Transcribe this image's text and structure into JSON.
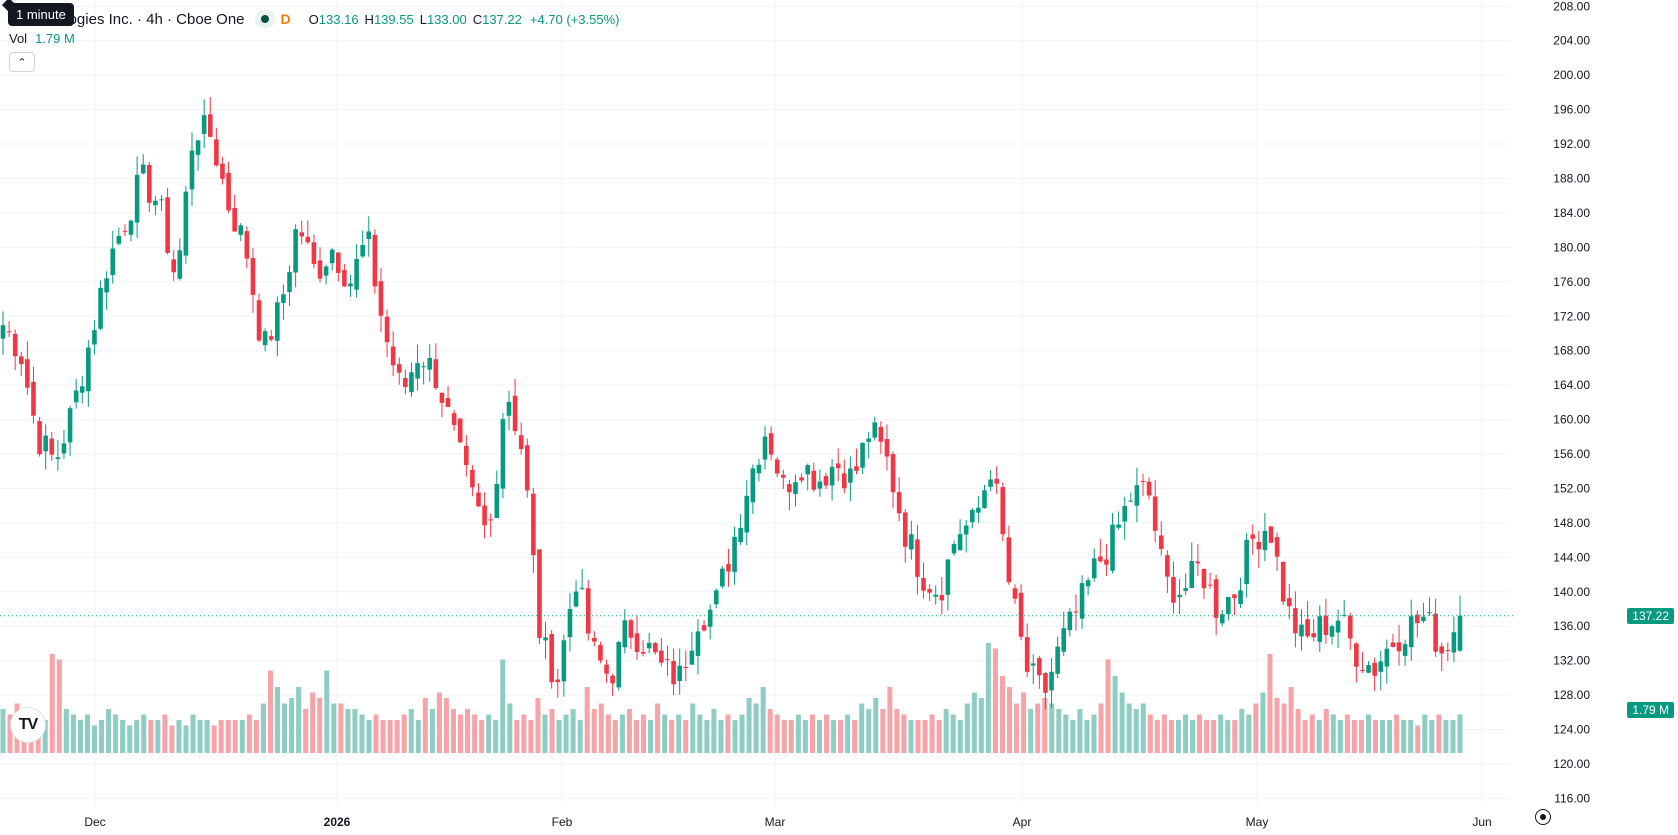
{
  "legend": {
    "title": "r Technologies Inc. · 4h · Cboe One",
    "flag": "D",
    "o_label": "O",
    "o_value": "133.16",
    "h_label": "H",
    "h_value": "139.55",
    "l_label": "L",
    "l_value": "133.00",
    "c_label": "C",
    "c_value": "137.22",
    "change": "+4.70 (+3.55%)",
    "tooltip": "1 minute"
  },
  "volume_legend": {
    "label": "Vol",
    "value": "1.79 M"
  },
  "colors": {
    "up": "#089981",
    "down": "#f23645",
    "vol_up": "#8dcdc3",
    "vol_down": "#f6a4a8",
    "grid": "#f0f3fa"
  },
  "icons": {
    "collapse": "chevron-up-icon",
    "logo": "tradingview-logo",
    "settings": "gear-icon"
  },
  "logo_text": "TV",
  "collapse_glyph": "⌃",
  "price_tag": "137.22",
  "volume_tag": "1.79 M",
  "chart_data": {
    "type": "candlestick",
    "y_ticks": [
      116.0,
      120.0,
      124.0,
      128.0,
      132.0,
      136.0,
      140.0,
      144.0,
      148.0,
      152.0,
      156.0,
      160.0,
      164.0,
      168.0,
      172.0,
      176.0,
      180.0,
      184.0,
      188.0,
      192.0,
      196.0,
      200.0,
      204.0,
      208.0
    ],
    "ylim": [
      115,
      208.5
    ],
    "x_ticks": [
      "Dec",
      "2026",
      "Feb",
      "Mar",
      "Apr",
      "May",
      "Jun"
    ],
    "last_price": 137.22,
    "last_volume": "1.79 M",
    "anchors": [
      [
        171,
        171,
        174,
        168,
        "Nov 20"
      ],
      [
        168,
        168,
        172,
        163,
        "Nov 24"
      ],
      [
        158,
        158,
        161,
        152,
        "Nov 25"
      ],
      [
        155,
        155,
        159,
        148,
        "Nov 26"
      ],
      [
        161,
        161,
        164,
        157,
        "Nov 28"
      ],
      [
        169,
        169,
        171,
        166,
        "Dec 2"
      ],
      [
        178,
        178,
        181,
        175,
        "Dec 5"
      ],
      [
        183,
        183,
        185,
        180,
        "Dec 9"
      ],
      [
        188,
        188,
        190,
        184,
        "Dec 11"
      ],
      [
        185,
        185,
        189,
        180,
        "Dec 15"
      ],
      [
        176,
        176,
        180,
        172,
        "Dec 17"
      ],
      [
        194,
        194,
        199,
        190,
        "Dec 19"
      ],
      [
        193,
        193,
        196,
        190,
        "Dec 22"
      ],
      [
        185,
        185,
        188,
        181,
        "Dec 24"
      ],
      [
        180,
        180,
        183,
        176,
        "Dec 26"
      ],
      [
        168,
        168,
        170,
        166,
        "Dec 30"
      ],
      [
        173,
        173,
        177,
        171,
        "Jan 2"
      ],
      [
        183,
        183,
        187,
        180,
        "Jan 5"
      ],
      [
        177,
        177,
        180,
        174,
        "Jan 8"
      ],
      [
        180,
        180,
        182,
        177,
        "Jan 12"
      ],
      [
        176,
        176,
        179,
        173,
        "Jan 14"
      ],
      [
        181,
        181,
        183,
        178,
        "Jan 15"
      ],
      [
        170,
        170,
        172,
        167,
        "Jan 19"
      ],
      [
        163,
        163,
        166,
        160,
        "Jan 21"
      ],
      [
        168,
        168,
        172,
        164,
        "Jan 23"
      ],
      [
        165,
        165,
        168,
        162,
        "Jan 26"
      ],
      [
        158,
        158,
        162,
        155,
        "Jan 28"
      ],
      [
        151,
        151,
        154,
        146,
        "Jan 29"
      ],
      [
        146,
        146,
        149,
        143,
        "Jan 30"
      ],
      [
        164,
        164,
        166,
        160,
        "Feb 2"
      ],
      [
        156,
        156,
        159,
        152,
        "Feb 3"
      ],
      [
        134,
        134,
        137,
        130,
        "Feb 4"
      ],
      [
        130,
        130,
        135,
        127,
        "Feb 5"
      ],
      [
        142,
        142,
        146,
        138,
        "Feb 9"
      ],
      [
        133,
        133,
        137,
        130,
        "Feb 11"
      ],
      [
        130,
        130,
        134,
        126,
        "Feb 13"
      ],
      [
        136,
        136,
        141,
        132,
        "Feb 17"
      ],
      [
        134,
        134,
        137,
        130,
        "Feb 19"
      ],
      [
        131,
        131,
        134,
        128,
        "Feb 23"
      ],
      [
        130,
        130,
        133,
        128,
        "Feb 24"
      ],
      [
        137,
        137,
        139,
        134,
        "Feb 26"
      ],
      [
        138,
        138,
        141,
        136,
        "Feb 27"
      ],
      [
        145,
        145,
        148,
        141,
        "Mar 3"
      ],
      [
        153,
        153,
        156,
        149,
        "Mar 5"
      ],
      [
        159,
        159,
        161,
        155,
        "Mar 9"
      ],
      [
        152,
        152,
        155,
        149,
        "Mar 11"
      ],
      [
        155,
        155,
        158,
        152,
        "Mar 13"
      ],
      [
        153,
        153,
        156,
        150,
        "Mar 17"
      ],
      [
        155,
        155,
        157,
        152,
        "Mar 19"
      ],
      [
        153,
        153,
        156,
        150,
        "Mar 23"
      ],
      [
        159,
        159,
        162,
        155,
        "Mar 25"
      ],
      [
        155,
        155,
        158,
        151,
        "Mar 27"
      ],
      [
        147,
        147,
        150,
        143,
        "Mar 30"
      ],
      [
        142,
        142,
        145,
        138,
        "Mar 31"
      ],
      [
        140,
        140,
        143,
        137,
        "Apr 1"
      ],
      [
        147,
        147,
        150,
        144,
        "Apr 2"
      ],
      [
        148,
        148,
        151,
        145,
        "Apr 6"
      ],
      [
        155,
        155,
        157,
        150,
        "Apr 7"
      ],
      [
        141,
        141,
        144,
        137,
        "Apr 8"
      ],
      [
        131,
        131,
        133,
        128,
        "Apr 9"
      ],
      [
        128,
        128,
        131,
        126,
        "Apr 10"
      ],
      [
        134,
        134,
        137,
        130,
        "Apr 13"
      ],
      [
        138,
        138,
        141,
        134,
        "Apr 15"
      ],
      [
        143,
        143,
        146,
        140,
        "Apr 17"
      ],
      [
        146,
        146,
        149,
        142,
        "Apr 20"
      ],
      [
        151,
        151,
        153,
        147,
        "Apr 22"
      ],
      [
        152,
        152,
        153,
        149,
        "Apr 23"
      ],
      [
        141,
        141,
        144,
        138,
        "Apr 24"
      ],
      [
        140,
        140,
        144,
        137,
        "Apr 28"
      ],
      [
        143,
        143,
        145,
        140,
        "Apr 30"
      ],
      [
        138,
        138,
        140,
        134,
        "May 4"
      ],
      [
        140,
        140,
        142,
        137,
        "May 5"
      ],
      [
        146,
        146,
        149,
        143,
        "May 6"
      ],
      [
        148,
        148,
        150,
        145,
        "May 7"
      ],
      [
        138,
        138,
        142,
        134,
        "May 8"
      ],
      [
        134,
        134,
        137,
        131,
        "May 11"
      ],
      [
        136,
        136,
        140,
        133,
        "May 13"
      ],
      [
        137,
        137,
        139,
        134,
        "May 15"
      ],
      [
        133,
        133,
        136,
        130,
        "May 18"
      ],
      [
        131,
        131,
        134,
        129,
        "May 20"
      ],
      [
        134,
        134,
        136,
        131,
        "May 21"
      ],
      [
        136,
        136,
        139,
        133,
        "May 22"
      ],
      [
        137,
        137,
        139,
        134,
        "May 26"
      ],
      [
        133,
        133,
        136,
        131,
        "May 27"
      ],
      [
        137.22,
        133.16,
        139.55,
        133.0,
        "May 28"
      ]
    ],
    "volume_levels": [
      0.4,
      0.35,
      0.45,
      0.3,
      0.4,
      0.3,
      0.3,
      0.9,
      0.85,
      0.4,
      0.35,
      0.3,
      0.35,
      0.25,
      0.3,
      0.4,
      0.35,
      0.3,
      0.25,
      0.3,
      0.35,
      0.3,
      0.3,
      0.35,
      0.25,
      0.3,
      0.25,
      0.35,
      0.3,
      0.3,
      0.25,
      0.3,
      0.3,
      0.3,
      0.3,
      0.35,
      0.3,
      0.45,
      0.75,
      0.6,
      0.45,
      0.5,
      0.6,
      0.4,
      0.55,
      0.5,
      0.75,
      0.45,
      0.45,
      0.4,
      0.4,
      0.35,
      0.3,
      0.35,
      0.3,
      0.3,
      0.3,
      0.35,
      0.4,
      0.3,
      0.5,
      0.4,
      0.55,
      0.5,
      0.4,
      0.35,
      0.4,
      0.35,
      0.3,
      0.35,
      0.3,
      0.85,
      0.45,
      0.3,
      0.35,
      0.3,
      0.5,
      0.35,
      0.4,
      0.3,
      0.35,
      0.4,
      0.3,
      0.6,
      0.4,
      0.45,
      0.35,
      0.3,
      0.35,
      0.4,
      0.3,
      0.35,
      0.3,
      0.45,
      0.35,
      0.3,
      0.35,
      0.3,
      0.45,
      0.35,
      0.3,
      0.4,
      0.3,
      0.35,
      0.3,
      0.35,
      0.5,
      0.45,
      0.6,
      0.4,
      0.35,
      0.3,
      0.3,
      0.35,
      0.3,
      0.35,
      0.3,
      0.35,
      0.3,
      0.3,
      0.35,
      0.3,
      0.45,
      0.4,
      0.5,
      0.4,
      0.6,
      0.4,
      0.35,
      0.3,
      0.3,
      0.3,
      0.35,
      0.3,
      0.4,
      0.35,
      0.3,
      0.45,
      0.55,
      0.5,
      1.0,
      0.95,
      0.7,
      0.6,
      0.45,
      0.55,
      0.4,
      0.45,
      0.5,
      0.45,
      0.4,
      0.35,
      0.3,
      0.4,
      0.3,
      0.35,
      0.45,
      0.85,
      0.7,
      0.55,
      0.45,
      0.4,
      0.45,
      0.35,
      0.3,
      0.35,
      0.3,
      0.3,
      0.35,
      0.3,
      0.35,
      0.3,
      0.3,
      0.35,
      0.3,
      0.3,
      0.4,
      0.35,
      0.45,
      0.55,
      0.9,
      0.5,
      0.45,
      0.6,
      0.4,
      0.3,
      0.35,
      0.3,
      0.4,
      0.35,
      0.3,
      0.35,
      0.3,
      0.3,
      0.35,
      0.3,
      0.3,
      0.3,
      0.35,
      0.3,
      0.3,
      0.25,
      0.35,
      0.3,
      0.35,
      0.3,
      0.3,
      0.35
    ]
  }
}
